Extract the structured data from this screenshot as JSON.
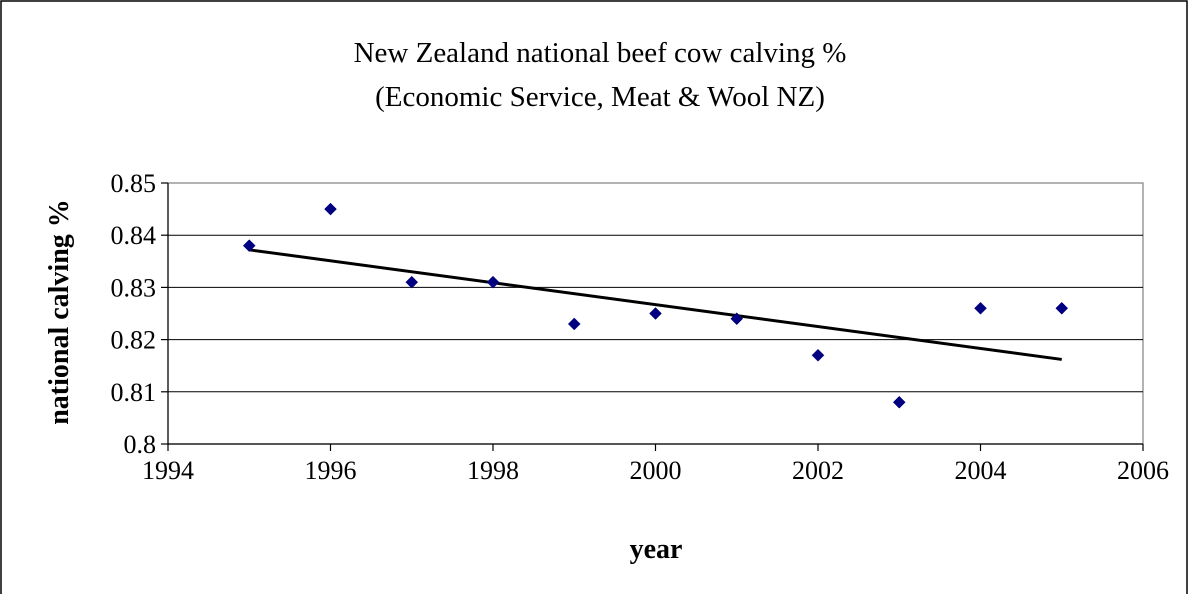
{
  "chart_data": {
    "type": "scatter",
    "title": [
      "New Zealand national beef cow calving %",
      "(Economic Service, Meat & Wool NZ)"
    ],
    "xlabel": "year",
    "ylabel": "national calving %",
    "xlim": [
      1994,
      2006
    ],
    "ylim": [
      0.8,
      0.85
    ],
    "x_ticks": [
      1994,
      1996,
      1998,
      2000,
      2002,
      2004,
      2006
    ],
    "y_ticks": [
      0.8,
      0.81,
      0.82,
      0.83,
      0.84,
      0.85
    ],
    "x_tick_labels": [
      "1994",
      "1996",
      "1998",
      "2000",
      "2002",
      "2004",
      "2006"
    ],
    "y_tick_labels": [
      "0.8",
      "0.81",
      "0.82",
      "0.83",
      "0.84",
      "0.85"
    ],
    "grid": "horizontal",
    "legend": false,
    "series": [
      {
        "marker": "diamond",
        "color": "#000080",
        "x": [
          1995,
          1996,
          1997,
          1998,
          1999,
          2000,
          2001,
          2002,
          2003,
          2004,
          2005
        ],
        "y": [
          0.838,
          0.845,
          0.831,
          0.831,
          0.823,
          0.825,
          0.824,
          0.817,
          0.808,
          0.826,
          0.826
        ]
      }
    ],
    "trendline": {
      "type": "linear",
      "color": "#000000",
      "x": [
        1995,
        2005
      ],
      "y": [
        0.8372,
        0.8162
      ]
    }
  }
}
